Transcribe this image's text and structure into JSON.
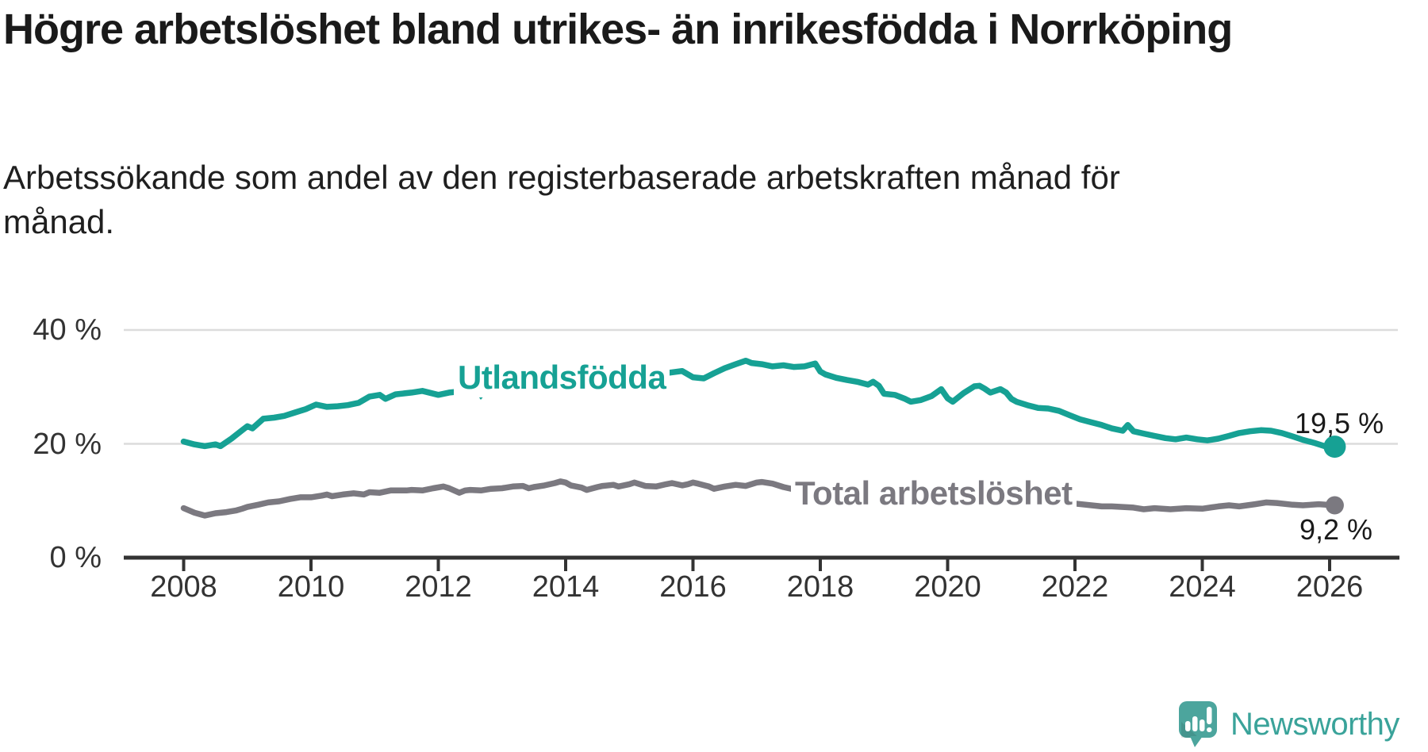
{
  "header": {
    "title": "Högre arbetslöshet bland utrikes- än inrikesfödda i Norrköping",
    "subtitle": "Arbetssökande som andel av den registerbaserade arbetskraften månad för månad."
  },
  "colors": {
    "foreign_born_line": "#16a194",
    "total_line": "#7b7980",
    "grid": "#dcdcdc",
    "axis": "#333333",
    "text": "#1a1a1a",
    "logo_teal": "#4ca59d",
    "logo_text_teal": "#3aa39a"
  },
  "chart_data": {
    "type": "line",
    "grid": "horizontal-only",
    "x_ticks": [
      2008,
      2010,
      2012,
      2014,
      2016,
      2018,
      2020,
      2022,
      2024,
      2026
    ],
    "y_ticks": [
      {
        "value": 0,
        "label": "0 %"
      },
      {
        "value": 20,
        "label": "20 %"
      },
      {
        "value": 40,
        "label": "40 %"
      }
    ],
    "xlim": [
      2008,
      2026.2
    ],
    "ylim": [
      0,
      42
    ],
    "series": [
      {
        "name": "Utlandsfödda",
        "end_label": "19,5 %",
        "end_value": 19.5,
        "points": [
          [
            2008.0,
            20.4
          ],
          [
            2008.17,
            19.9
          ],
          [
            2008.33,
            19.6
          ],
          [
            2008.5,
            19.9
          ],
          [
            2008.58,
            19.6
          ],
          [
            2008.75,
            20.9
          ],
          [
            2008.92,
            22.4
          ],
          [
            2009.0,
            23.1
          ],
          [
            2009.08,
            22.7
          ],
          [
            2009.25,
            24.4
          ],
          [
            2009.42,
            24.6
          ],
          [
            2009.58,
            24.9
          ],
          [
            2009.75,
            25.5
          ],
          [
            2009.92,
            26.1
          ],
          [
            2010.08,
            26.9
          ],
          [
            2010.25,
            26.5
          ],
          [
            2010.42,
            26.6
          ],
          [
            2010.58,
            26.8
          ],
          [
            2010.75,
            27.2
          ],
          [
            2010.92,
            28.3
          ],
          [
            2011.08,
            28.6
          ],
          [
            2011.17,
            27.9
          ],
          [
            2011.33,
            28.7
          ],
          [
            2011.58,
            29.0
          ],
          [
            2011.75,
            29.3
          ],
          [
            2012.0,
            28.6
          ],
          [
            2012.17,
            29.0
          ],
          [
            2012.42,
            29.3
          ],
          [
            2012.58,
            29.3
          ],
          [
            2012.83,
            29.7
          ],
          [
            2013.0,
            29.4
          ],
          [
            2013.17,
            29.7
          ],
          [
            2013.42,
            30.0
          ],
          [
            2013.75,
            30.4
          ],
          [
            2014.08,
            30.8
          ],
          [
            2014.5,
            31.2
          ],
          [
            2015.0,
            31.7
          ],
          [
            2015.5,
            32.3
          ],
          [
            2015.83,
            32.8
          ],
          [
            2016.0,
            31.7
          ],
          [
            2016.17,
            31.5
          ],
          [
            2016.33,
            32.4
          ],
          [
            2016.5,
            33.3
          ],
          [
            2016.67,
            34.0
          ],
          [
            2016.83,
            34.6
          ],
          [
            2016.92,
            34.2
          ],
          [
            2017.08,
            34.0
          ],
          [
            2017.25,
            33.6
          ],
          [
            2017.42,
            33.8
          ],
          [
            2017.58,
            33.5
          ],
          [
            2017.75,
            33.6
          ],
          [
            2017.92,
            34.1
          ],
          [
            2018.0,
            32.7
          ],
          [
            2018.08,
            32.2
          ],
          [
            2018.25,
            31.6
          ],
          [
            2018.42,
            31.2
          ],
          [
            2018.58,
            30.9
          ],
          [
            2018.75,
            30.4
          ],
          [
            2018.83,
            30.9
          ],
          [
            2018.92,
            30.2
          ],
          [
            2019.0,
            28.8
          ],
          [
            2019.17,
            28.6
          ],
          [
            2019.33,
            27.9
          ],
          [
            2019.42,
            27.4
          ],
          [
            2019.58,
            27.7
          ],
          [
            2019.75,
            28.4
          ],
          [
            2019.9,
            29.6
          ],
          [
            2020.0,
            28.0
          ],
          [
            2020.08,
            27.4
          ],
          [
            2020.25,
            28.9
          ],
          [
            2020.42,
            30.1
          ],
          [
            2020.5,
            30.2
          ],
          [
            2020.58,
            29.7
          ],
          [
            2020.67,
            29.0
          ],
          [
            2020.83,
            29.6
          ],
          [
            2020.92,
            29.0
          ],
          [
            2021.0,
            27.9
          ],
          [
            2021.08,
            27.4
          ],
          [
            2021.25,
            26.8
          ],
          [
            2021.42,
            26.3
          ],
          [
            2021.58,
            26.2
          ],
          [
            2021.75,
            25.8
          ],
          [
            2021.92,
            25.0
          ],
          [
            2022.08,
            24.3
          ],
          [
            2022.25,
            23.8
          ],
          [
            2022.42,
            23.3
          ],
          [
            2022.58,
            22.7
          ],
          [
            2022.75,
            22.3
          ],
          [
            2022.83,
            23.3
          ],
          [
            2022.92,
            22.2
          ],
          [
            2023.08,
            21.8
          ],
          [
            2023.25,
            21.4
          ],
          [
            2023.42,
            21.0
          ],
          [
            2023.58,
            20.8
          ],
          [
            2023.75,
            21.1
          ],
          [
            2023.92,
            20.8
          ],
          [
            2024.08,
            20.6
          ],
          [
            2024.25,
            20.9
          ],
          [
            2024.42,
            21.4
          ],
          [
            2024.58,
            21.9
          ],
          [
            2024.75,
            22.2
          ],
          [
            2024.92,
            22.4
          ],
          [
            2025.08,
            22.3
          ],
          [
            2025.25,
            21.9
          ],
          [
            2025.42,
            21.3
          ],
          [
            2025.58,
            20.7
          ],
          [
            2025.75,
            20.2
          ],
          [
            2025.92,
            19.6
          ],
          [
            2026.08,
            19.5
          ]
        ]
      },
      {
        "name": "Total arbetslöshet",
        "end_label": "9,2 %",
        "end_value": 9.2,
        "points": [
          [
            2008.0,
            8.7
          ],
          [
            2008.17,
            7.9
          ],
          [
            2008.33,
            7.4
          ],
          [
            2008.5,
            7.8
          ],
          [
            2008.67,
            8.0
          ],
          [
            2008.83,
            8.3
          ],
          [
            2008.92,
            8.6
          ],
          [
            2009.0,
            8.9
          ],
          [
            2009.17,
            9.3
          ],
          [
            2009.33,
            9.7
          ],
          [
            2009.5,
            9.9
          ],
          [
            2009.67,
            10.3
          ],
          [
            2009.83,
            10.6
          ],
          [
            2010.0,
            10.6
          ],
          [
            2010.17,
            10.9
          ],
          [
            2010.25,
            11.1
          ],
          [
            2010.33,
            10.8
          ],
          [
            2010.5,
            11.1
          ],
          [
            2010.67,
            11.3
          ],
          [
            2010.83,
            11.1
          ],
          [
            2010.92,
            11.5
          ],
          [
            2011.08,
            11.4
          ],
          [
            2011.25,
            11.8
          ],
          [
            2011.5,
            11.8
          ],
          [
            2011.58,
            11.9
          ],
          [
            2011.75,
            11.8
          ],
          [
            2011.92,
            12.2
          ],
          [
            2012.08,
            12.5
          ],
          [
            2012.17,
            12.2
          ],
          [
            2012.33,
            11.4
          ],
          [
            2012.42,
            11.8
          ],
          [
            2012.5,
            11.9
          ],
          [
            2012.67,
            11.8
          ],
          [
            2012.83,
            12.1
          ],
          [
            2013.0,
            12.2
          ],
          [
            2013.17,
            12.5
          ],
          [
            2013.33,
            12.6
          ],
          [
            2013.42,
            12.2
          ],
          [
            2013.5,
            12.4
          ],
          [
            2013.67,
            12.7
          ],
          [
            2013.83,
            13.1
          ],
          [
            2013.92,
            13.4
          ],
          [
            2014.0,
            13.2
          ],
          [
            2014.08,
            12.7
          ],
          [
            2014.25,
            12.3
          ],
          [
            2014.33,
            11.9
          ],
          [
            2014.5,
            12.4
          ],
          [
            2014.58,
            12.6
          ],
          [
            2014.75,
            12.8
          ],
          [
            2014.83,
            12.5
          ],
          [
            2015.0,
            12.9
          ],
          [
            2015.08,
            13.2
          ],
          [
            2015.25,
            12.6
          ],
          [
            2015.42,
            12.5
          ],
          [
            2015.58,
            12.9
          ],
          [
            2015.67,
            13.1
          ],
          [
            2015.83,
            12.7
          ],
          [
            2015.92,
            12.9
          ],
          [
            2016.0,
            13.2
          ],
          [
            2016.08,
            13.0
          ],
          [
            2016.25,
            12.5
          ],
          [
            2016.33,
            12.1
          ],
          [
            2016.5,
            12.5
          ],
          [
            2016.67,
            12.8
          ],
          [
            2016.83,
            12.6
          ],
          [
            2017.0,
            13.2
          ],
          [
            2017.08,
            13.3
          ],
          [
            2017.25,
            13.0
          ],
          [
            2017.42,
            12.4
          ],
          [
            2017.58,
            12.0
          ],
          [
            2017.83,
            11.8
          ],
          [
            2018.08,
            11.6
          ],
          [
            2018.5,
            11.2
          ],
          [
            2019.0,
            10.8
          ],
          [
            2019.5,
            10.4
          ],
          [
            2019.92,
            10.5
          ],
          [
            2020.08,
            10.4
          ],
          [
            2020.42,
            11.5
          ],
          [
            2020.67,
            11.3
          ],
          [
            2021.0,
            10.9
          ],
          [
            2021.5,
            10.2
          ],
          [
            2022.0,
            9.5
          ],
          [
            2022.42,
            9.0
          ],
          [
            2022.58,
            9.0
          ],
          [
            2022.75,
            8.9
          ],
          [
            2022.92,
            8.8
          ],
          [
            2023.08,
            8.5
          ],
          [
            2023.25,
            8.7
          ],
          [
            2023.5,
            8.5
          ],
          [
            2023.75,
            8.7
          ],
          [
            2024.0,
            8.6
          ],
          [
            2024.25,
            9.0
          ],
          [
            2024.42,
            9.2
          ],
          [
            2024.58,
            9.0
          ],
          [
            2024.83,
            9.4
          ],
          [
            2025.0,
            9.7
          ],
          [
            2025.17,
            9.6
          ],
          [
            2025.42,
            9.3
          ],
          [
            2025.58,
            9.2
          ],
          [
            2025.83,
            9.4
          ],
          [
            2026.08,
            9.2
          ]
        ]
      }
    ]
  },
  "logo": {
    "text": "Newsworthy"
  }
}
